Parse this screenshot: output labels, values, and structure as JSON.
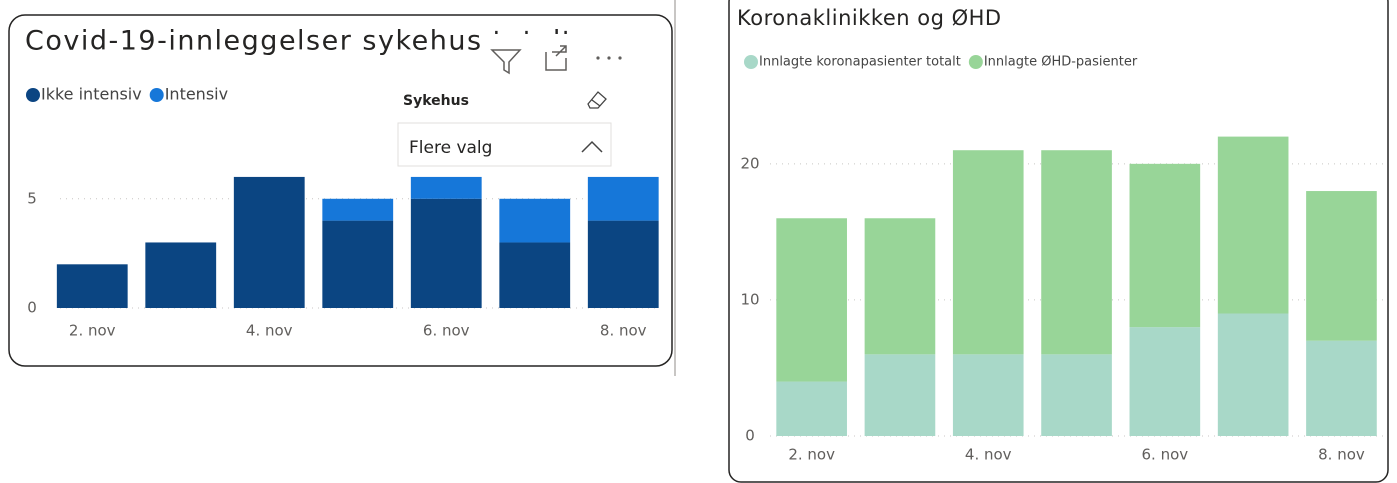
{
  "chart_data": [
    {
      "type": "bar",
      "stacked": true,
      "title": "Covid-19-innleggelser sykehus totalt",
      "categories": [
        "2. nov",
        null,
        "4. nov",
        null,
        "6. nov",
        null,
        "8. nov"
      ],
      "series": [
        {
          "name": "Ikke intensiv",
          "color": "#0b4582",
          "values": [
            2,
            3,
            6,
            4,
            5,
            3,
            4
          ]
        },
        {
          "name": "Intensiv",
          "color": "#1677d9",
          "values": [
            0,
            0,
            0,
            1,
            1,
            2,
            2
          ]
        }
      ],
      "ylim": [
        0,
        6.5
      ],
      "yticks": [
        0,
        5
      ],
      "grid": true,
      "legend": "top-left"
    },
    {
      "type": "bar",
      "stacked": true,
      "title": "Koronaklinikken og ØHD",
      "categories": [
        "2. nov",
        null,
        "4. nov",
        null,
        "6. nov",
        null,
        "8. nov"
      ],
      "series": [
        {
          "name": "Innlagte koronapasienter totalt",
          "color": "#a8d8c8",
          "values": [
            4,
            6,
            6,
            6,
            8,
            9,
            7
          ]
        },
        {
          "name": "Innlagte ØHD-pasienter",
          "color": "#98d598",
          "values": [
            12,
            10,
            15,
            15,
            12,
            13,
            11
          ]
        }
      ],
      "ylim": [
        0,
        23
      ],
      "yticks": [
        0,
        10,
        20
      ],
      "grid": true,
      "legend": "top-left"
    }
  ],
  "filter": {
    "label": "Sykehus",
    "value": "Flere valg"
  }
}
